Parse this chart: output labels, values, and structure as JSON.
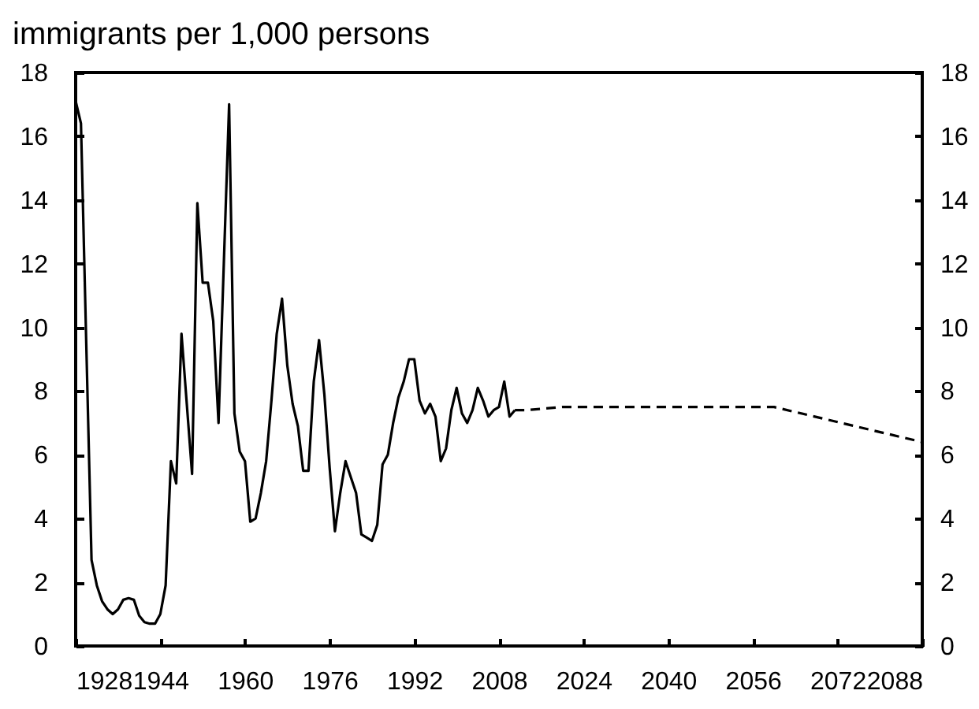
{
  "chart_data": {
    "type": "line",
    "title": "immigrants per 1,000 persons",
    "xlim": [
      1928,
      2088
    ],
    "xticks": [
      1928,
      1944,
      1960,
      1976,
      1992,
      2008,
      2024,
      2040,
      2056,
      2072,
      2088
    ],
    "ylim": [
      0,
      18
    ],
    "yticks": [
      0,
      2,
      4,
      6,
      8,
      10,
      12,
      14,
      16,
      18
    ],
    "y2lim": [
      0,
      18
    ],
    "y2ticks": [
      0,
      2,
      4,
      6,
      8,
      10,
      12,
      14,
      16,
      18
    ],
    "grid": false,
    "series": [
      {
        "color": "#000000",
        "line_style": "solid",
        "x": [
          1928,
          1929,
          1930,
          1931,
          1932,
          1933,
          1934,
          1935,
          1936,
          1937,
          1938,
          1939,
          1940,
          1941,
          1942,
          1943,
          1944,
          1945,
          1946,
          1947,
          1948,
          1949,
          1950,
          1951,
          1952,
          1953,
          1954,
          1955,
          1956,
          1957,
          1958,
          1959,
          1960,
          1961,
          1962,
          1963,
          1964,
          1965,
          1966,
          1967,
          1968,
          1969,
          1970,
          1971,
          1972,
          1973,
          1974,
          1975,
          1976,
          1977,
          1978,
          1979,
          1980,
          1981,
          1982,
          1983,
          1984,
          1985,
          1986,
          1987,
          1988,
          1989,
          1990,
          1991,
          1992,
          1993,
          1994,
          1995,
          1996,
          1997,
          1998,
          1999,
          2000,
          2001,
          2002,
          2003,
          2004,
          2005,
          2006,
          2007,
          2008,
          2009,
          2010,
          2011
        ],
        "values": [
          17.1,
          16.4,
          9.5,
          2.7,
          1.9,
          1.4,
          1.15,
          1.0,
          1.15,
          1.45,
          1.5,
          1.45,
          0.95,
          0.75,
          0.7,
          0.7,
          1.0,
          1.9,
          5.8,
          5.1,
          9.8,
          7.6,
          5.4,
          13.9,
          11.4,
          11.4,
          10.2,
          7.0,
          12.0,
          17.0,
          7.3,
          6.1,
          5.8,
          3.9,
          4.0,
          4.8,
          5.8,
          7.7,
          9.8,
          10.9,
          8.8,
          7.6,
          6.9,
          5.5,
          5.5,
          8.3,
          9.6,
          7.9,
          5.6,
          3.6,
          4.8,
          5.8,
          5.3,
          4.8,
          3.5,
          3.4,
          3.3,
          3.8,
          5.7,
          6.0,
          7.0,
          7.8,
          8.3,
          9.0,
          9.0,
          7.7,
          7.3,
          7.6,
          7.2,
          5.8,
          6.2,
          7.4,
          8.1,
          7.3,
          7.0,
          7.4,
          8.1,
          7.7,
          7.2,
          7.4,
          7.5,
          8.3,
          7.2,
          7.4
        ]
      },
      {
        "color": "#000000",
        "line_style": "dashed",
        "x": [
          2011,
          2013,
          2020,
          2060,
          2088
        ],
        "values": [
          7.4,
          7.4,
          7.5,
          7.5,
          6.4
        ]
      }
    ]
  }
}
